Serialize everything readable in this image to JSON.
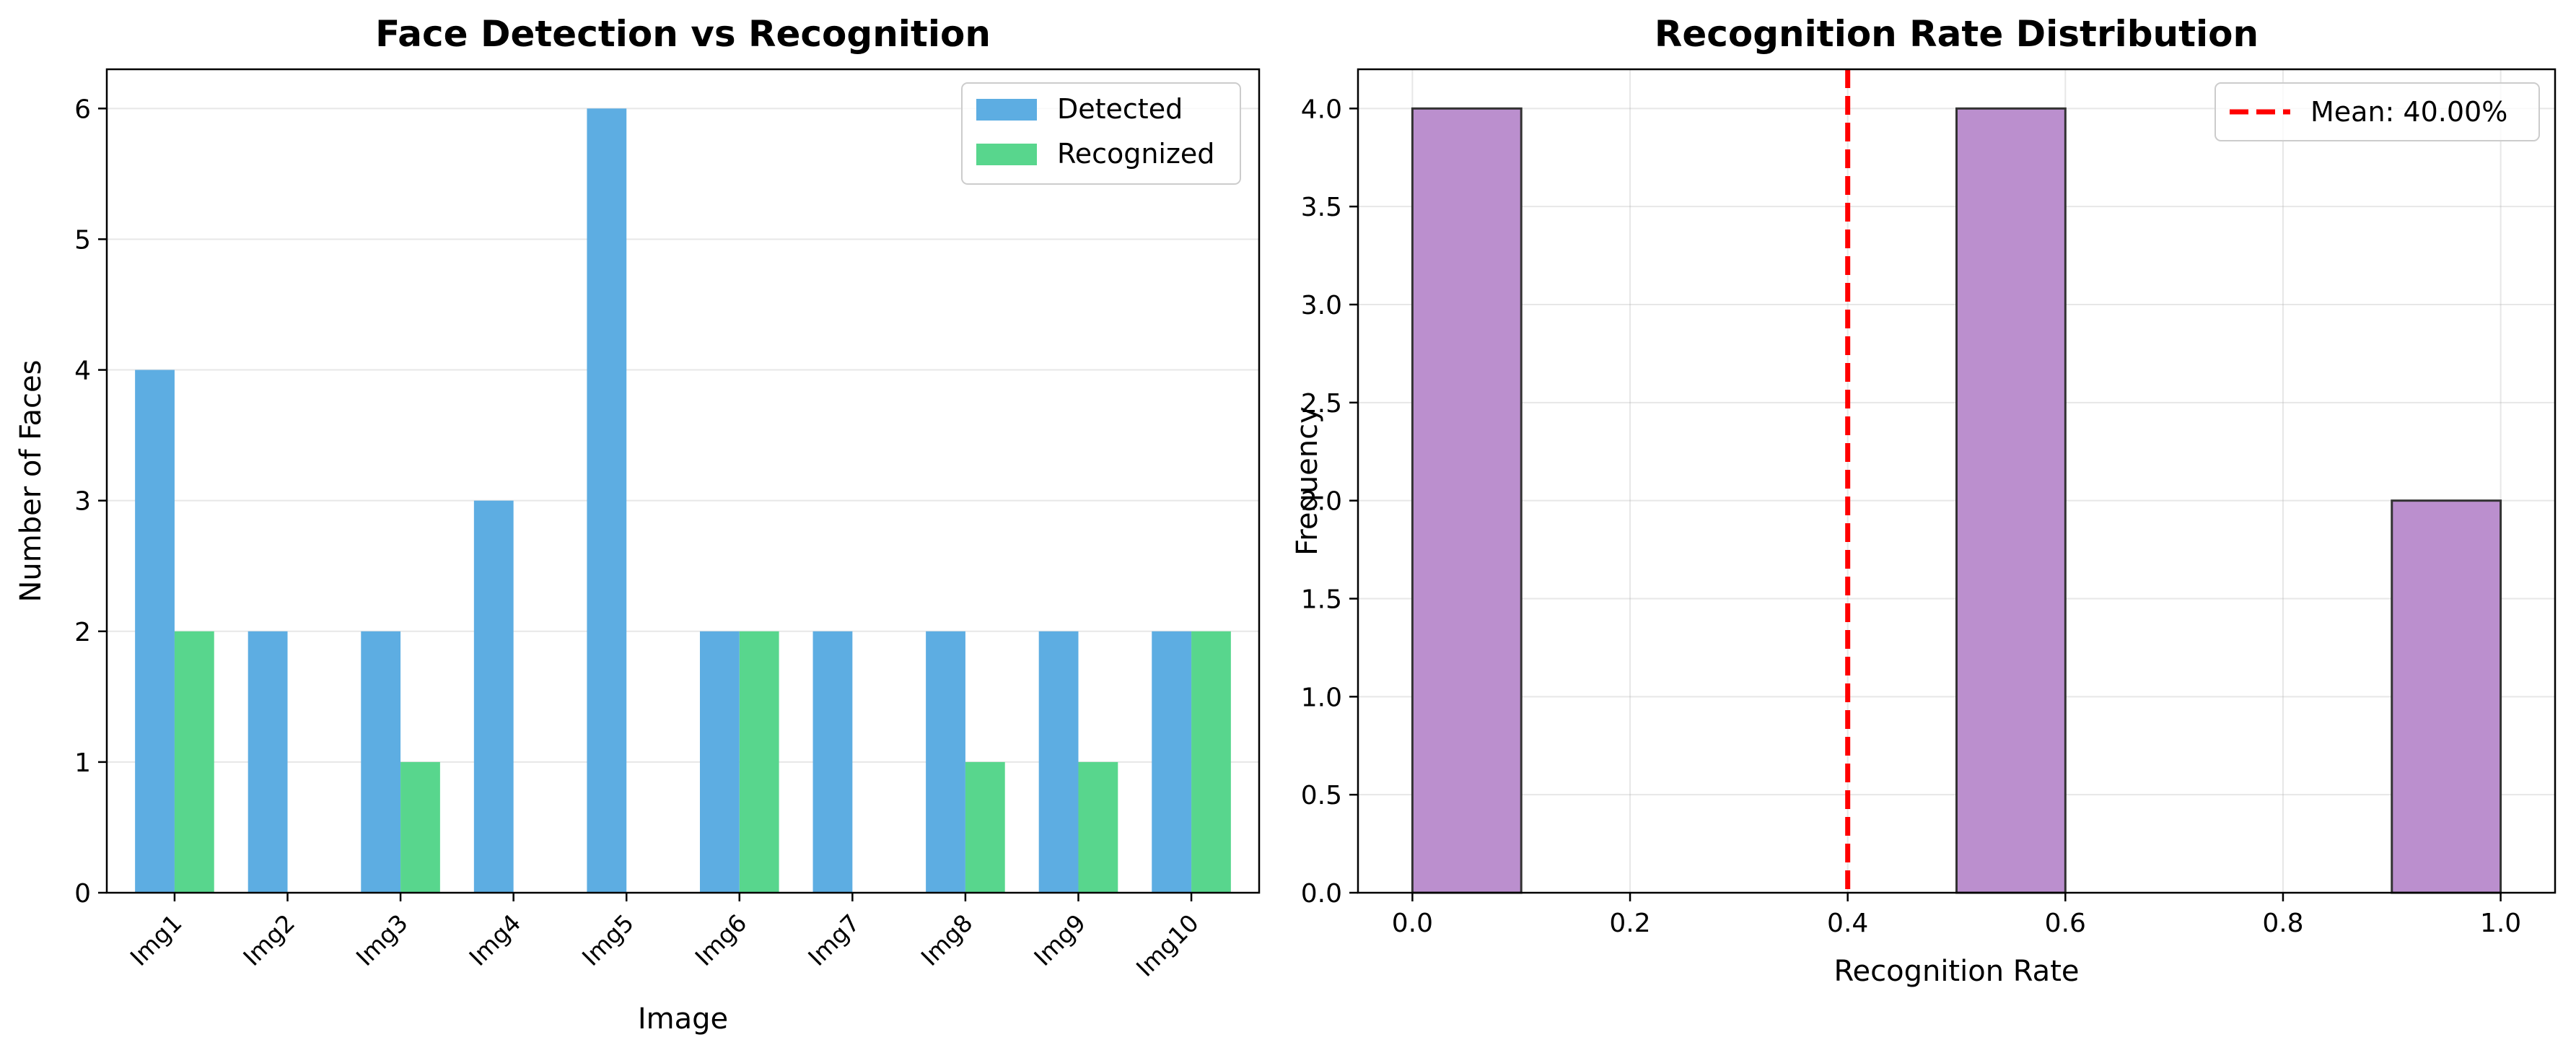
{
  "chart_data": [
    {
      "type": "bar",
      "title": "Face Detection vs Recognition",
      "xlabel": "Image",
      "ylabel": "Number of Faces",
      "categories": [
        "Img1",
        "Img2",
        "Img3",
        "Img4",
        "Img5",
        "Img6",
        "Img7",
        "Img8",
        "Img9",
        "Img10"
      ],
      "series": [
        {
          "name": "Detected",
          "color": "#5DADE2",
          "values": [
            4,
            2,
            2,
            3,
            6,
            2,
            2,
            2,
            2,
            2
          ]
        },
        {
          "name": "Recognized",
          "color": "#58D68D",
          "values": [
            2,
            0,
            1,
            0,
            0,
            2,
            0,
            1,
            1,
            2
          ]
        }
      ],
      "ylim": [
        0,
        6.3
      ],
      "yticks": [
        "0",
        "1",
        "2",
        "3",
        "4",
        "5",
        "6"
      ],
      "grid": "y",
      "legend_position": "top-right"
    },
    {
      "type": "bar",
      "subtype": "histogram",
      "title": "Recognition Rate Distribution",
      "xlabel": "Recognition Rate",
      "ylabel": "Frequency",
      "bins": [
        {
          "x0": 0.0,
          "x1": 0.1,
          "count": 4
        },
        {
          "x0": 0.5,
          "x1": 0.6,
          "count": 4
        },
        {
          "x0": 0.9,
          "x1": 1.0,
          "count": 2
        }
      ],
      "bar_color": "#BB8FCE",
      "edge_color": "#333333",
      "mean_line": {
        "value": 0.4,
        "label": "Mean: 40.00%",
        "color": "#FF0000"
      },
      "xlim": [
        -0.05,
        1.05
      ],
      "ylim": [
        0,
        4.2
      ],
      "xticks": [
        "0.0",
        "0.2",
        "0.4",
        "0.6",
        "0.8",
        "1.0"
      ],
      "yticks": [
        "0.0",
        "0.5",
        "1.0",
        "1.5",
        "2.0",
        "2.5",
        "3.0",
        "3.5",
        "4.0"
      ],
      "grid": "both",
      "legend_position": "top-right"
    }
  ]
}
